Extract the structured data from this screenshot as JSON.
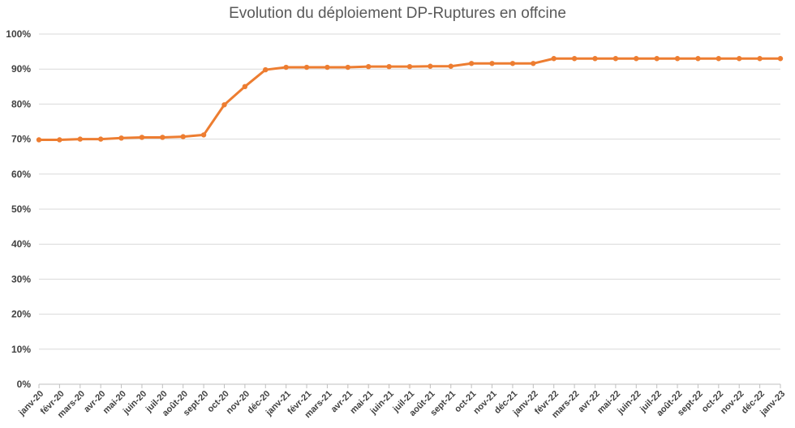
{
  "chart_data": {
    "type": "line",
    "title": "Evolution du déploiement DP-Ruptures en offcine",
    "xlabel": "",
    "ylabel": "",
    "ylim": [
      0,
      100
    ],
    "yticks": [
      "0%",
      "10%",
      "20%",
      "30%",
      "40%",
      "50%",
      "60%",
      "70%",
      "80%",
      "90%",
      "100%"
    ],
    "grid": "horizontal",
    "legend": "none",
    "colors": {
      "line": "#ED7D31",
      "grid": "#D9D9D9",
      "axis": "#BFBFBF",
      "text": "#404040"
    },
    "categories": [
      "janv-20",
      "févr-20",
      "mars-20",
      "avr-20",
      "mai-20",
      "juin-20",
      "juil-20",
      "août-20",
      "sept-20",
      "oct-20",
      "nov-20",
      "déc-20",
      "janv-21",
      "févr-21",
      "mars-21",
      "avr-21",
      "mai-21",
      "juin-21",
      "juil-21",
      "août-21",
      "sept-21",
      "oct-21",
      "nov-21",
      "déc-21",
      "janv-22",
      "févr-22",
      "mars-22",
      "avr-22",
      "mai-22",
      "juin-22",
      "juil-22",
      "août-22",
      "sept-22",
      "oct-22",
      "nov-22",
      "déc-22",
      "janv-23"
    ],
    "series": [
      {
        "values": [
          69.8,
          69.8,
          70.0,
          70.0,
          70.3,
          70.5,
          70.5,
          70.7,
          71.2,
          79.8,
          85.0,
          89.8,
          90.5,
          90.5,
          90.5,
          90.5,
          90.7,
          90.7,
          90.7,
          90.8,
          90.8,
          91.6,
          91.6,
          91.6,
          91.6,
          93.0,
          93.0,
          93.0,
          93.0,
          93.0,
          93.0,
          93.0,
          93.0,
          93.0,
          93.0,
          93.0,
          93.0
        ]
      }
    ]
  }
}
